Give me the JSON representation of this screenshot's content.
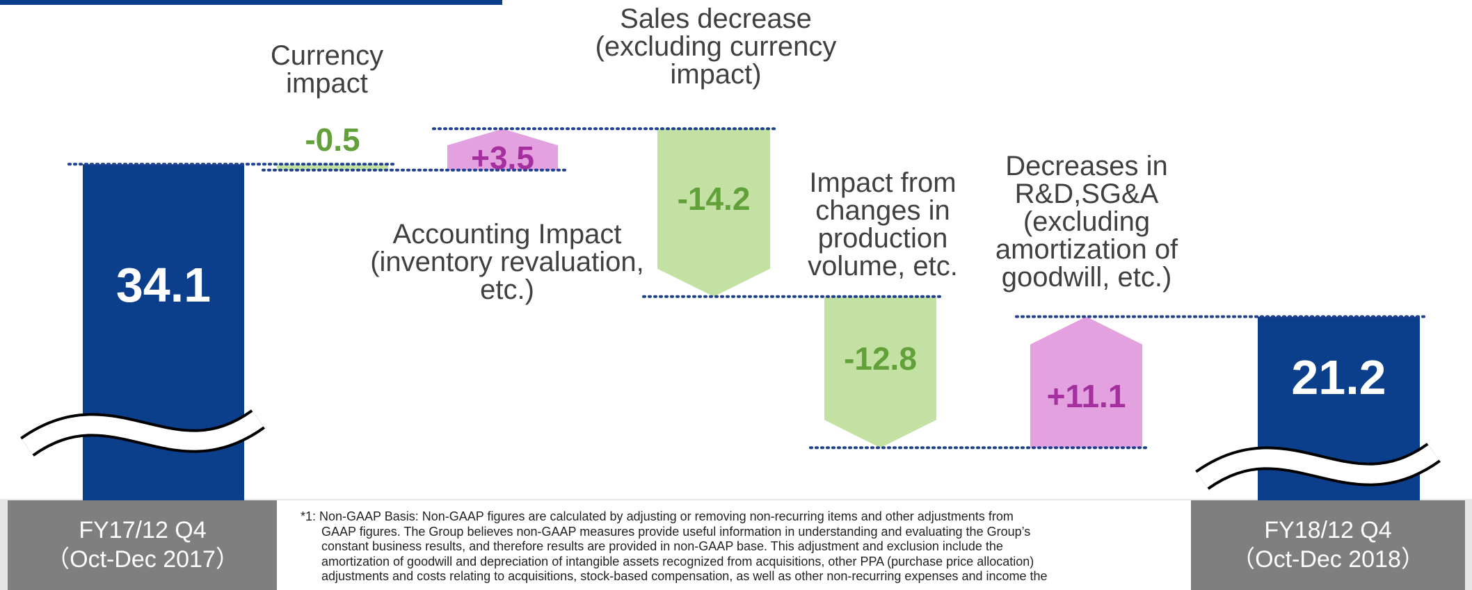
{
  "chart_data": {
    "type": "waterfall",
    "categories": [
      "FY17/12 Q4\n（Oct-Dec 2017）",
      "Currency\nimpact",
      "Accounting Impact\n(inventory revaluation,\netc.)",
      "Sales decrease\n(excluding currency\nimpact)",
      "Impact from\nchanges in\nproduction\nvolume, etc.",
      "Decreases in\nR&D,SG&A\n(excluding\namortization of\ngoodwill, etc.)",
      "FY18/12 Q4\n（Oct-Dec 2018）"
    ],
    "values": [
      34.1,
      -0.5,
      3.5,
      -14.2,
      -12.8,
      11.1,
      21.2
    ],
    "value_labels": [
      "34.1",
      "-0.5",
      "+3.5",
      "-14.2",
      "-12.8",
      "+11.1",
      "21.2"
    ],
    "totals": [
      0,
      6
    ],
    "colors": {
      "total": "#0b3f8c",
      "increase": "#e3a1e0",
      "decrease": "#c4e1a4"
    },
    "footnote": [
      "*1: Non-GAAP Basis: Non-GAAP figures are calculated by adjusting or removing non-recurring items and other adjustments from",
      "GAAP figures. The Group believes non-GAAP measures provide useful information in understanding and evaluating the Group’s",
      "constant business results, and therefore results are provided in non-GAAP base. This adjustment and exclusion include the",
      "amortization of goodwill and depreciation of intangible assets recognized from acquisitions, other PPA (purchase price allocation)",
      "adjustments and costs relating to acquisitions, stock-based compensation, as well as other non-recurring expenses and income the"
    ]
  }
}
